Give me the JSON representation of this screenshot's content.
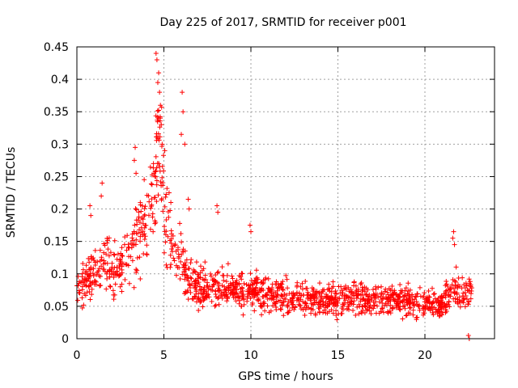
{
  "chart_data": {
    "type": "scatter",
    "title": "Day 225 of 2017, SRMTID for receiver p001",
    "xlabel": "GPS time / hours",
    "ylabel": "SRMTID / TECUs",
    "xlim": [
      0,
      24
    ],
    "ylim": [
      0,
      0.45
    ],
    "x_ticks": [
      0,
      5,
      10,
      15,
      20
    ],
    "x_tick_labels": [
      "0",
      "5",
      "10",
      "15",
      "20"
    ],
    "y_ticks": [
      0,
      0.05,
      0.1,
      0.15,
      0.2,
      0.25,
      0.3,
      0.35,
      0.4,
      0.45
    ],
    "y_tick_labels": [
      "0",
      "0.05",
      "0.1",
      "0.15",
      "0.2",
      "0.25",
      "0.3",
      "0.35",
      "0.4",
      "0.45"
    ],
    "grid": true,
    "marker": "plus",
    "marker_color": "#ff0000",
    "series": [
      {
        "name": "SRMTID",
        "profile": [
          [
            0.0,
            0.07
          ],
          [
            0.5,
            0.09
          ],
          [
            1.0,
            0.11
          ],
          [
            1.5,
            0.12
          ],
          [
            2.0,
            0.1
          ],
          [
            2.5,
            0.1
          ],
          [
            3.0,
            0.13
          ],
          [
            3.5,
            0.17
          ],
          [
            4.0,
            0.17
          ],
          [
            4.5,
            0.25
          ],
          [
            4.8,
            0.28
          ],
          [
            5.0,
            0.2
          ],
          [
            5.5,
            0.14
          ],
          [
            6.0,
            0.12
          ],
          [
            6.5,
            0.09
          ],
          [
            7.0,
            0.08
          ],
          [
            8.0,
            0.08
          ],
          [
            9.0,
            0.075
          ],
          [
            10.0,
            0.075
          ],
          [
            11.0,
            0.07
          ],
          [
            12.0,
            0.065
          ],
          [
            13.0,
            0.06
          ],
          [
            14.0,
            0.06
          ],
          [
            15.0,
            0.06
          ],
          [
            16.0,
            0.065
          ],
          [
            17.0,
            0.06
          ],
          [
            18.0,
            0.06
          ],
          [
            19.0,
            0.06
          ],
          [
            20.0,
            0.055
          ],
          [
            21.0,
            0.05
          ],
          [
            21.5,
            0.075
          ],
          [
            22.0,
            0.07
          ],
          [
            22.7,
            0.07
          ]
        ],
        "n_points": 1450,
        "x_range": [
          0,
          22.7
        ],
        "outliers": [
          [
            4.55,
            0.44
          ],
          [
            4.6,
            0.43
          ],
          [
            4.7,
            0.41
          ],
          [
            4.65,
            0.395
          ],
          [
            4.75,
            0.38
          ],
          [
            4.8,
            0.36
          ],
          [
            4.7,
            0.34
          ],
          [
            4.85,
            0.33
          ],
          [
            6.05,
            0.38
          ],
          [
            6.1,
            0.35
          ],
          [
            6.0,
            0.315
          ],
          [
            6.2,
            0.3
          ],
          [
            3.35,
            0.295
          ],
          [
            3.3,
            0.275
          ],
          [
            3.4,
            0.255
          ],
          [
            4.4,
            0.27
          ],
          [
            4.9,
            0.3
          ],
          [
            5.05,
            0.29
          ],
          [
            1.45,
            0.24
          ],
          [
            1.4,
            0.22
          ],
          [
            0.75,
            0.205
          ],
          [
            0.8,
            0.19
          ],
          [
            8.05,
            0.205
          ],
          [
            8.1,
            0.195
          ],
          [
            9.95,
            0.175
          ],
          [
            10.0,
            0.165
          ],
          [
            21.65,
            0.165
          ],
          [
            21.6,
            0.155
          ],
          [
            21.7,
            0.145
          ],
          [
            22.5,
            0.005
          ],
          [
            22.55,
            0.0
          ],
          [
            6.4,
            0.215
          ],
          [
            6.45,
            0.2
          ],
          [
            5.3,
            0.225
          ],
          [
            5.4,
            0.21
          ]
        ]
      }
    ]
  }
}
